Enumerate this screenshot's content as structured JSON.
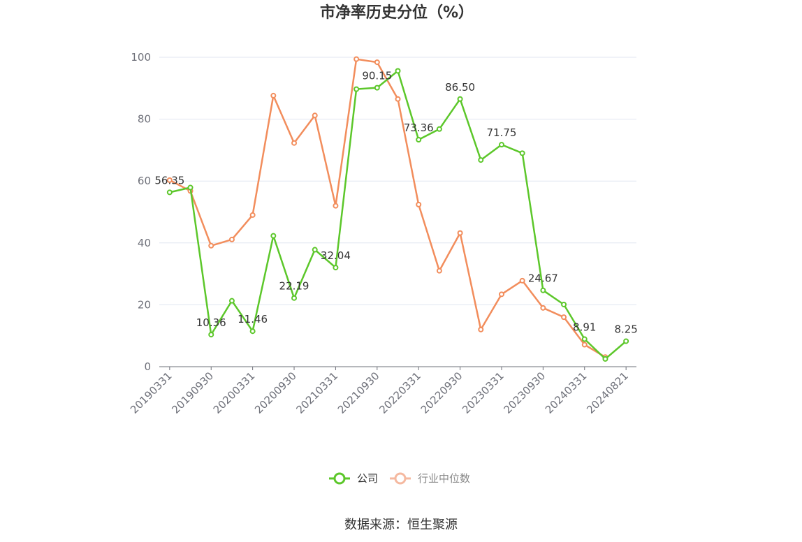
{
  "chart_data": {
    "type": "line",
    "title": "市净率历史分位（%）",
    "source": "数据来源：恒生聚源",
    "ylim": [
      0,
      100
    ],
    "y_ticks": [
      "0",
      "20",
      "40",
      "60",
      "80",
      "100"
    ],
    "x_tick_labels": [
      "20190331",
      "20190930",
      "20200331",
      "20200930",
      "20210331",
      "20210930",
      "20220331",
      "20220930",
      "20230331",
      "20230930",
      "20240331",
      "20240821"
    ],
    "categories": [
      "20190331",
      "20190630",
      "20190930",
      "20191231",
      "20200331",
      "20200630",
      "20200930",
      "20201231",
      "20210331",
      "20210630",
      "20210930",
      "20211231",
      "20220331",
      "20220630",
      "20220930",
      "20221231",
      "20230331",
      "20230630",
      "20230930",
      "20231231",
      "20240331",
      "20240630",
      "20240821"
    ],
    "grid": true,
    "legend_position": "bottom",
    "series": [
      {
        "name": "公司",
        "color": "#5cc72a",
        "values": [
          56.35,
          57.9,
          10.36,
          21.3,
          11.46,
          42.3,
          22.19,
          37.8,
          32.04,
          89.7,
          90.15,
          95.6,
          73.36,
          76.8,
          86.5,
          66.8,
          71.75,
          69.0,
          24.67,
          20.1,
          8.91,
          2.5,
          8.25
        ],
        "data_labels": {
          "0": "56.35",
          "2": "10.36",
          "4": "11.46",
          "6": "22.19",
          "8": "32.04",
          "10": "90.15",
          "12": "73.36",
          "14": "86.50",
          "16": "71.75",
          "18": "24.67",
          "20": "8.91",
          "22": "8.25"
        }
      },
      {
        "name": "行业中位数",
        "color": "#f28d5c",
        "values": [
          60.3,
          56.8,
          39.1,
          41.1,
          49.0,
          87.6,
          72.3,
          81.2,
          52.0,
          99.4,
          98.4,
          86.5,
          52.4,
          31.0,
          43.2,
          12.0,
          23.4,
          27.8,
          19.0,
          16.0,
          7.1,
          3.1,
          null
        ]
      }
    ]
  }
}
